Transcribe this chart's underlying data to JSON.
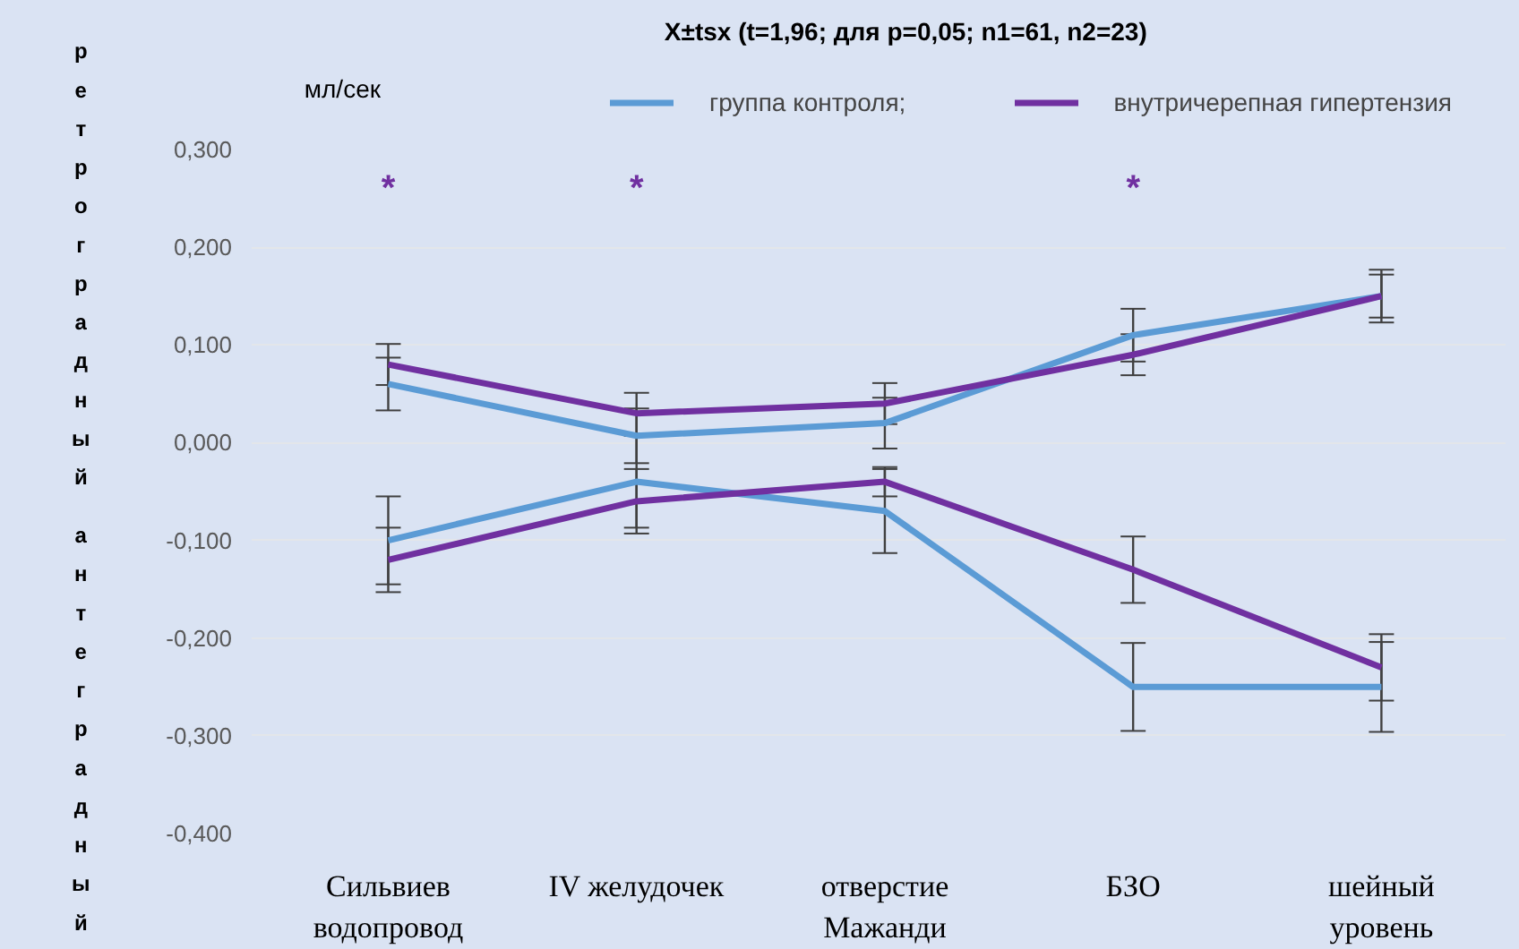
{
  "chart_data": {
    "type": "line",
    "title": "X±tsx (t=1,96; для p=0,05; n1=61, n2=23)",
    "ylabel": "ретроградный антеградный",
    "categories": [
      "Сильвиев водопровод",
      "IV желудочек",
      "отверстие Мажанди",
      "БЗО",
      "шейный уровень"
    ],
    "series": [
      {
        "name": "группа контроля;",
        "color": "#5b9bd5",
        "values": [
          0.06,
          0.007,
          0.02,
          0.11,
          0.15
        ],
        "errors": [
          0.027,
          0.028,
          0.026,
          0.027,
          0.027
        ]
      },
      {
        "name": "внутричерепная гипертензия",
        "color": "#7030a0",
        "values": [
          0.08,
          0.03,
          0.04,
          0.09,
          0.15
        ],
        "errors": [
          0.021,
          0.021,
          0.021,
          0.021,
          0.022
        ]
      },
      {
        "color": "#5b9bd5",
        "values": [
          -0.1,
          -0.04,
          -0.07,
          -0.25,
          -0.25
        ],
        "errors": [
          0.045,
          0.047,
          0.043,
          0.045,
          0.046
        ]
      },
      {
        "color": "#7030a0",
        "values": [
          -0.12,
          -0.06,
          -0.04,
          -0.13,
          -0.23
        ],
        "errors": [
          0.033,
          0.033,
          0.015,
          0.034,
          0.034
        ]
      }
    ],
    "annotations": [
      "мл/сек",
      "*",
      "*",
      "*"
    ],
    "ylim": [
      -0.4,
      0.3
    ],
    "yticks": [
      {
        "value": -0.4,
        "label": "-0,400"
      },
      {
        "value": -0.3,
        "label": "-0,300"
      },
      {
        "value": -0.2,
        "label": "-0,200"
      },
      {
        "value": -0.1,
        "label": "-0,100"
      },
      {
        "value": 0,
        "label": "0,000"
      },
      {
        "value": 0.1,
        "label": "0,100"
      },
      {
        "value": 0.2,
        "label": "0,200"
      },
      {
        "value": 0.3,
        "label": "0,300"
      }
    ],
    "grid": "y",
    "legend": "top",
    "marker": "none",
    "line_style": "solid"
  }
}
